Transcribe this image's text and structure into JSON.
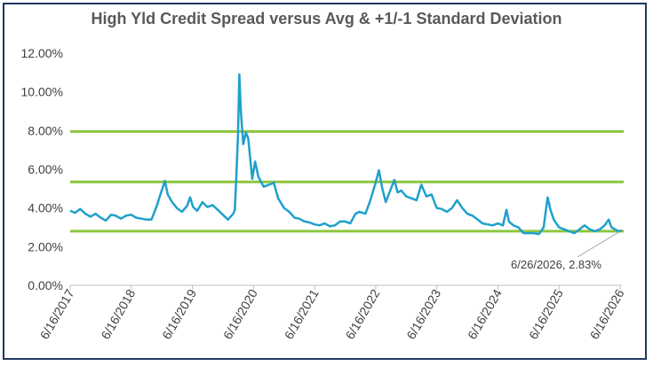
{
  "chart_data": {
    "type": "line",
    "title": "High Yld Credit Spread versus Avg & +1/-1 Standard Deviation",
    "xlabel": "",
    "ylabel": "",
    "x_ticks": [
      "6/16/2017",
      "6/16/2018",
      "6/16/2019",
      "6/16/2020",
      "6/16/2021",
      "6/16/2022",
      "6/16/2023",
      "6/16/2024",
      "6/16/2025",
      "6/16/2026"
    ],
    "y_ticks": [
      "0.00%",
      "2.00%",
      "4.00%",
      "6.00%",
      "8.00%",
      "10.00%",
      "12.00%"
    ],
    "ylim": [
      0,
      12
    ],
    "xlim": [
      "2017-06-16",
      "2026-06-26"
    ],
    "grid": false,
    "colors": {
      "spread": "#1fa0cc",
      "bands": "#8cc63f",
      "frame": "#1f3864",
      "annotation_line": "#a6a6a6"
    },
    "series": [
      {
        "points": [
          [
            "2017-06-16",
            3.85
          ],
          [
            "2017-07-15",
            3.75
          ],
          [
            "2017-08-15",
            3.95
          ],
          [
            "2017-09-15",
            3.7
          ],
          [
            "2017-10-15",
            3.55
          ],
          [
            "2017-11-15",
            3.7
          ],
          [
            "2017-12-15",
            3.5
          ],
          [
            "2018-01-15",
            3.35
          ],
          [
            "2018-02-15",
            3.65
          ],
          [
            "2018-03-15",
            3.6
          ],
          [
            "2018-04-15",
            3.45
          ],
          [
            "2018-05-15",
            3.6
          ],
          [
            "2018-06-15",
            3.65
          ],
          [
            "2018-07-15",
            3.5
          ],
          [
            "2018-08-15",
            3.45
          ],
          [
            "2018-09-15",
            3.4
          ],
          [
            "2018-10-15",
            3.4
          ],
          [
            "2018-11-15",
            4.1
          ],
          [
            "2018-12-15",
            4.9
          ],
          [
            "2019-01-03",
            5.4
          ],
          [
            "2019-01-20",
            4.7
          ],
          [
            "2019-02-15",
            4.3
          ],
          [
            "2019-03-15",
            4.0
          ],
          [
            "2019-04-15",
            3.8
          ],
          [
            "2019-05-15",
            4.1
          ],
          [
            "2019-06-03",
            4.55
          ],
          [
            "2019-06-20",
            4.05
          ],
          [
            "2019-07-15",
            3.85
          ],
          [
            "2019-08-15",
            4.3
          ],
          [
            "2019-09-15",
            4.05
          ],
          [
            "2019-10-15",
            4.15
          ],
          [
            "2019-11-15",
            3.9
          ],
          [
            "2019-12-15",
            3.65
          ],
          [
            "2020-01-15",
            3.4
          ],
          [
            "2020-02-15",
            3.7
          ],
          [
            "2020-02-25",
            3.9
          ],
          [
            "2020-03-05",
            5.6
          ],
          [
            "2020-03-15",
            7.8
          ],
          [
            "2020-03-23",
            10.9
          ],
          [
            "2020-04-01",
            9.0
          ],
          [
            "2020-04-15",
            7.3
          ],
          [
            "2020-05-01",
            7.9
          ],
          [
            "2020-05-15",
            7.6
          ],
          [
            "2020-06-08",
            5.5
          ],
          [
            "2020-06-25",
            6.4
          ],
          [
            "2020-07-15",
            5.6
          ],
          [
            "2020-08-15",
            5.1
          ],
          [
            "2020-09-15",
            5.2
          ],
          [
            "2020-10-15",
            5.3
          ],
          [
            "2020-11-10",
            4.5
          ],
          [
            "2020-12-15",
            4.0
          ],
          [
            "2021-01-15",
            3.8
          ],
          [
            "2021-02-15",
            3.5
          ],
          [
            "2021-03-15",
            3.45
          ],
          [
            "2021-04-15",
            3.3
          ],
          [
            "2021-05-15",
            3.25
          ],
          [
            "2021-06-15",
            3.15
          ],
          [
            "2021-07-15",
            3.1
          ],
          [
            "2021-08-15",
            3.2
          ],
          [
            "2021-09-15",
            3.05
          ],
          [
            "2021-10-15",
            3.1
          ],
          [
            "2021-11-15",
            3.3
          ],
          [
            "2021-12-15",
            3.3
          ],
          [
            "2022-01-15",
            3.2
          ],
          [
            "2022-02-15",
            3.7
          ],
          [
            "2022-03-10",
            3.8
          ],
          [
            "2022-04-15",
            3.7
          ],
          [
            "2022-05-15",
            4.4
          ],
          [
            "2022-06-15",
            5.3
          ],
          [
            "2022-07-05",
            5.95
          ],
          [
            "2022-07-25",
            5.0
          ],
          [
            "2022-08-15",
            4.3
          ],
          [
            "2022-09-15",
            5.0
          ],
          [
            "2022-10-05",
            5.45
          ],
          [
            "2022-10-25",
            4.8
          ],
          [
            "2022-11-15",
            4.9
          ],
          [
            "2022-12-15",
            4.6
          ],
          [
            "2023-01-15",
            4.5
          ],
          [
            "2023-02-15",
            4.4
          ],
          [
            "2023-03-15",
            5.2
          ],
          [
            "2023-04-15",
            4.6
          ],
          [
            "2023-05-15",
            4.7
          ],
          [
            "2023-06-15",
            4.0
          ],
          [
            "2023-07-15",
            3.95
          ],
          [
            "2023-08-15",
            3.8
          ],
          [
            "2023-09-15",
            4.0
          ],
          [
            "2023-10-15",
            4.4
          ],
          [
            "2023-11-15",
            4.0
          ],
          [
            "2023-12-15",
            3.7
          ],
          [
            "2024-01-15",
            3.6
          ],
          [
            "2024-02-15",
            3.4
          ],
          [
            "2024-03-15",
            3.2
          ],
          [
            "2024-04-15",
            3.15
          ],
          [
            "2024-05-15",
            3.1
          ],
          [
            "2024-06-15",
            3.2
          ],
          [
            "2024-07-15",
            3.1
          ],
          [
            "2024-08-05",
            3.9
          ],
          [
            "2024-08-20",
            3.3
          ],
          [
            "2024-09-15",
            3.1
          ],
          [
            "2024-10-15",
            3.0
          ],
          [
            "2024-11-15",
            2.7
          ],
          [
            "2024-12-15",
            2.7
          ],
          [
            "2025-01-15",
            2.7
          ],
          [
            "2025-02-15",
            2.65
          ],
          [
            "2025-03-15",
            3.0
          ],
          [
            "2025-04-08",
            4.55
          ],
          [
            "2025-04-25",
            3.9
          ],
          [
            "2025-05-15",
            3.4
          ],
          [
            "2025-06-15",
            3.0
          ],
          [
            "2025-07-15",
            2.9
          ],
          [
            "2025-08-15",
            2.8
          ],
          [
            "2025-09-15",
            2.7
          ],
          [
            "2025-10-15",
            2.9
          ],
          [
            "2025-11-15",
            3.1
          ],
          [
            "2025-12-15",
            2.9
          ],
          [
            "2026-01-15",
            2.8
          ],
          [
            "2026-02-15",
            2.9
          ],
          [
            "2026-03-15",
            3.1
          ],
          [
            "2026-04-08",
            3.4
          ],
          [
            "2026-04-25",
            3.0
          ],
          [
            "2026-05-15",
            2.9
          ],
          [
            "2026-06-05",
            2.8
          ],
          [
            "2026-06-26",
            2.83
          ]
        ]
      }
    ],
    "reference_lines": [
      7.95,
      5.35,
      2.8
    ],
    "annotation": {
      "text": "6/26/2026, 2.83%",
      "x": "2026-06-26",
      "y": 2.83
    }
  }
}
